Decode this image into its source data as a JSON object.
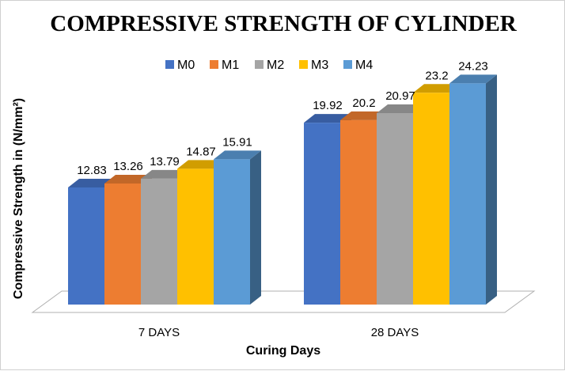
{
  "chart_data": {
    "type": "bar",
    "title": "COMPRESSIVE STRENGTH OF CYLINDER",
    "xlabel": "Curing Days",
    "ylabel": "Compressive Strength in (N/mm²)",
    "categories": [
      "7 DAYS",
      "28 DAYS"
    ],
    "series": [
      {
        "name": "M0",
        "values": [
          12.83,
          19.92
        ],
        "color": "#4472C4",
        "label_text": [
          "12.83",
          "19.92"
        ]
      },
      {
        "name": "M1",
        "values": [
          13.26,
          20.2
        ],
        "color": "#ED7D31",
        "label_text": [
          "13.26",
          "20.2"
        ]
      },
      {
        "name": "M2",
        "values": [
          13.79,
          20.97
        ],
        "color": "#A5A5A5",
        "label_text": [
          "13.79",
          "20.97"
        ]
      },
      {
        "name": "M3",
        "values": [
          14.87,
          23.2
        ],
        "color": "#FFC000",
        "label_text": [
          "14.87",
          "23.2"
        ]
      },
      {
        "name": "M4",
        "values": [
          15.91,
          24.23
        ],
        "color": "#5B9BD5",
        "label_text": [
          "15.91",
          "24.23"
        ]
      }
    ],
    "ylim": [
      0,
      30
    ],
    "grid": false,
    "legend_position": "top",
    "style": "3d-clustered-column"
  }
}
